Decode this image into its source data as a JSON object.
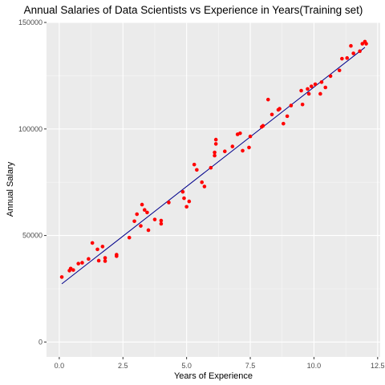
{
  "chart_data": {
    "type": "scatter",
    "title": "Annual Salaries of Data Scientists vs Experience in Years(Training set)",
    "xlabel": "Years of Experience",
    "ylabel": "Annual Salary",
    "xlim": [
      -0.5,
      12.6
    ],
    "ylim": [
      -7000,
      150000
    ],
    "x_ticks": [
      0,
      2.5,
      5,
      7.5,
      10,
      12.5
    ],
    "x_tick_labels": [
      "0.0",
      "2.5",
      "5.0",
      "7.5",
      "10.0",
      "12.5"
    ],
    "y_ticks": [
      0,
      50000,
      100000,
      150000
    ],
    "y_tick_labels": [
      "0",
      "50000",
      "100000",
      "150000"
    ],
    "grid": true,
    "legend": "none",
    "point_color": "#ff0000",
    "line_color": "#00008b",
    "panel_color": "#ebebeb",
    "regression_line": {
      "x": [
        0.1,
        12.0
      ],
      "y": [
        27300,
        138300
      ]
    },
    "points": [
      {
        "x": 0.1,
        "y": 30500
      },
      {
        "x": 0.4,
        "y": 33500
      },
      {
        "x": 0.45,
        "y": 34500
      },
      {
        "x": 0.55,
        "y": 33800
      },
      {
        "x": 0.75,
        "y": 36800
      },
      {
        "x": 0.9,
        "y": 37200
      },
      {
        "x": 1.15,
        "y": 39000
      },
      {
        "x": 1.3,
        "y": 46500
      },
      {
        "x": 1.5,
        "y": 43500
      },
      {
        "x": 1.55,
        "y": 38200
      },
      {
        "x": 1.7,
        "y": 44800
      },
      {
        "x": 1.8,
        "y": 39500
      },
      {
        "x": 1.8,
        "y": 38000
      },
      {
        "x": 2.25,
        "y": 40300
      },
      {
        "x": 2.25,
        "y": 41000
      },
      {
        "x": 2.75,
        "y": 49000
      },
      {
        "x": 2.95,
        "y": 56700
      },
      {
        "x": 3.05,
        "y": 60000
      },
      {
        "x": 3.2,
        "y": 54500
      },
      {
        "x": 3.25,
        "y": 64500
      },
      {
        "x": 3.35,
        "y": 62000
      },
      {
        "x": 3.45,
        "y": 60800
      },
      {
        "x": 3.5,
        "y": 52500
      },
      {
        "x": 3.75,
        "y": 57500
      },
      {
        "x": 4.0,
        "y": 55500
      },
      {
        "x": 4.0,
        "y": 57000
      },
      {
        "x": 4.3,
        "y": 65500
      },
      {
        "x": 4.85,
        "y": 70500
      },
      {
        "x": 4.9,
        "y": 67500
      },
      {
        "x": 5.0,
        "y": 63500
      },
      {
        "x": 5.1,
        "y": 66000
      },
      {
        "x": 5.3,
        "y": 83300
      },
      {
        "x": 5.4,
        "y": 80800
      },
      {
        "x": 5.6,
        "y": 75000
      },
      {
        "x": 5.7,
        "y": 73000
      },
      {
        "x": 5.95,
        "y": 81800
      },
      {
        "x": 6.1,
        "y": 89000
      },
      {
        "x": 6.1,
        "y": 87500
      },
      {
        "x": 6.15,
        "y": 93000
      },
      {
        "x": 6.15,
        "y": 95000
      },
      {
        "x": 6.5,
        "y": 89500
      },
      {
        "x": 6.8,
        "y": 91800
      },
      {
        "x": 7.0,
        "y": 97500
      },
      {
        "x": 7.1,
        "y": 98000
      },
      {
        "x": 7.2,
        "y": 89800
      },
      {
        "x": 7.45,
        "y": 91300
      },
      {
        "x": 7.5,
        "y": 96500
      },
      {
        "x": 7.95,
        "y": 101000
      },
      {
        "x": 8.0,
        "y": 101500
      },
      {
        "x": 8.2,
        "y": 113800
      },
      {
        "x": 8.35,
        "y": 106800
      },
      {
        "x": 8.6,
        "y": 109000
      },
      {
        "x": 8.65,
        "y": 109500
      },
      {
        "x": 8.8,
        "y": 102500
      },
      {
        "x": 8.95,
        "y": 106000
      },
      {
        "x": 9.1,
        "y": 111000
      },
      {
        "x": 9.5,
        "y": 118000
      },
      {
        "x": 9.55,
        "y": 111500
      },
      {
        "x": 9.75,
        "y": 118800
      },
      {
        "x": 9.8,
        "y": 116500
      },
      {
        "x": 9.9,
        "y": 120000
      },
      {
        "x": 10.05,
        "y": 121000
      },
      {
        "x": 10.25,
        "y": 116500
      },
      {
        "x": 10.3,
        "y": 122000
      },
      {
        "x": 10.45,
        "y": 119500
      },
      {
        "x": 10.65,
        "y": 124800
      },
      {
        "x": 11.0,
        "y": 127500
      },
      {
        "x": 11.1,
        "y": 133000
      },
      {
        "x": 11.3,
        "y": 133300
      },
      {
        "x": 11.45,
        "y": 139000
      },
      {
        "x": 11.55,
        "y": 135500
      },
      {
        "x": 11.8,
        "y": 136500
      },
      {
        "x": 11.9,
        "y": 140000
      },
      {
        "x": 12.0,
        "y": 141000
      },
      {
        "x": 12.05,
        "y": 140000
      }
    ]
  }
}
